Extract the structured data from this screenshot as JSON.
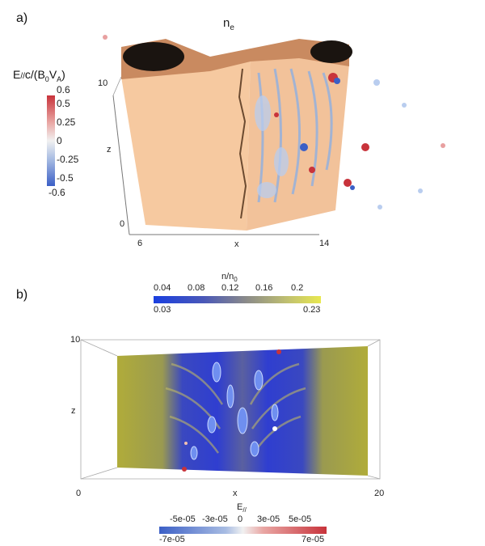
{
  "panel_a": {
    "label": "a)",
    "title_main": "n",
    "title_sub": "e",
    "colorbar": {
      "title": "E//c/(B0VA)",
      "title_parts": [
        "E",
        "//",
        "c/(B",
        "0",
        "V",
        "A",
        ")"
      ],
      "ticks": [
        "0.6",
        "0.5",
        "0.25",
        "0",
        "-0.25",
        "-0.5",
        "-0.6"
      ],
      "colors": {
        "high": "#c8333b",
        "mid": "#f1f1f1",
        "low": "#3b5fc6"
      }
    },
    "z_axis": {
      "label": "z",
      "ticks": [
        "10",
        "0"
      ]
    },
    "x_axis": {
      "label": "x",
      "ticks": [
        "6",
        "14"
      ]
    },
    "surface_color": "#f6c9a0",
    "top_color": "#c98a60"
  },
  "panel_b": {
    "label": "b)",
    "colorbar": {
      "title_main": "n/n",
      "title_sub": "0",
      "ticks_top": [
        "0.04",
        "0.08",
        "0.12",
        "0.16",
        "0.2"
      ],
      "ticks_bottom": [
        "0.03",
        "0.23"
      ],
      "colors": {
        "low": "#1a3fe0",
        "mid": "#8a8a8a",
        "high": "#e8e850"
      }
    },
    "z_axis": {
      "label": "z",
      "ticks": [
        "10",
        "0"
      ]
    },
    "x_axis": {
      "label": "x",
      "ticks": [
        "0",
        "20"
      ]
    },
    "e_colorbar": {
      "title_main": "E",
      "title_sub": "//",
      "ticks_top": [
        "-5e-05",
        "-3e-05",
        "0",
        "3e-05",
        "5e-05"
      ],
      "ticks_bottom": [
        "-7e-05",
        "7e-05"
      ],
      "colors": {
        "low": "#3b5fc6",
        "mid": "#f1f1f1",
        "high": "#c8333b"
      }
    },
    "field_colors": {
      "edge": "#b0ac3a",
      "core": "#2f3ed0"
    }
  }
}
